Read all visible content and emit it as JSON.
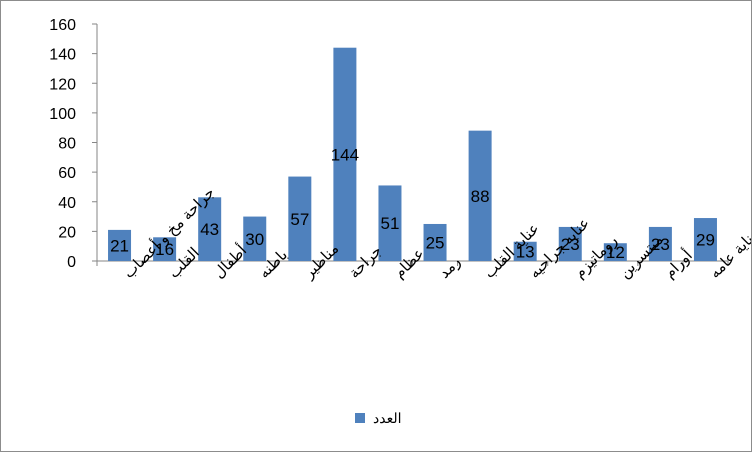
{
  "chart_data": {
    "type": "bar",
    "categories": [
      "جراحة مخ و أعصاب",
      "القلب",
      "أطفال",
      "باطنه",
      "مناظير",
      "جراحة",
      "عظام",
      "رمد",
      "عناية القلب",
      "عنايه جراحيه",
      "روماتيزم",
      "مبتسرين",
      "أورام",
      "عناية عامه"
    ],
    "series": [
      {
        "name": "العدد",
        "values": [
          21,
          16,
          43,
          30,
          57,
          144,
          51,
          25,
          88,
          13,
          23,
          12,
          23,
          29
        ]
      }
    ],
    "ylim": [
      0,
      160
    ],
    "yticks": [
      0,
      20,
      40,
      60,
      80,
      100,
      120,
      140,
      160
    ],
    "grid": false,
    "legend_position": "bottom",
    "data_labels": true,
    "bar_color": "#4f81bd"
  }
}
